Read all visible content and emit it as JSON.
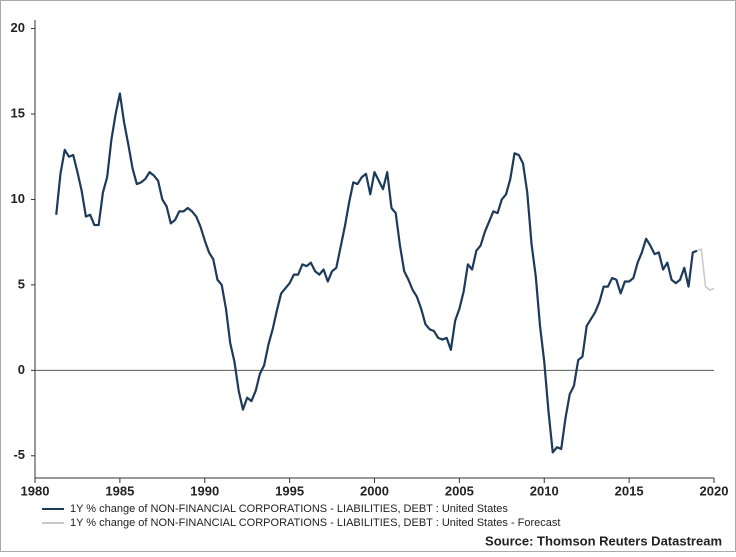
{
  "chart_data": {
    "type": "line",
    "source": "Source: Thomson Reuters Datastream",
    "xlim": [
      1980,
      2020
    ],
    "xticks": [
      1980,
      1985,
      1990,
      1995,
      2000,
      2005,
      2010,
      2015,
      2020
    ],
    "ylim": [
      -6.3,
      20.5
    ],
    "yticks": [
      -5,
      0,
      5,
      10,
      15,
      20
    ],
    "zero_line": true,
    "grid": false,
    "legend": "bottom",
    "series": [
      {
        "name": "1Y % change of NON-FINANCIAL CORPORATIONS - LIABILITIES, DEBT : United States",
        "color": "#1c3a5a",
        "x": [
          1981.25,
          1981.5,
          1981.75,
          1982,
          1982.25,
          1982.5,
          1982.75,
          1983,
          1983.25,
          1983.5,
          1983.75,
          1984,
          1984.25,
          1984.5,
          1984.75,
          1985,
          1985.25,
          1985.5,
          1985.75,
          1986,
          1986.25,
          1986.5,
          1986.75,
          1987,
          1987.25,
          1987.5,
          1987.75,
          1988,
          1988.25,
          1988.5,
          1988.75,
          1989,
          1989.25,
          1989.5,
          1989.75,
          1990,
          1990.25,
          1990.5,
          1990.75,
          1991,
          1991.25,
          1991.5,
          1991.75,
          1992,
          1992.25,
          1992.5,
          1992.75,
          1993,
          1993.25,
          1993.5,
          1993.75,
          1994,
          1994.25,
          1994.5,
          1994.75,
          1995,
          1995.25,
          1995.5,
          1995.75,
          1996,
          1996.25,
          1996.5,
          1996.75,
          1997,
          1997.25,
          1997.5,
          1997.75,
          1998,
          1998.25,
          1998.5,
          1998.75,
          1999,
          1999.25,
          1999.5,
          1999.75,
          2000,
          2000.25,
          2000.5,
          2000.75,
          2001,
          2001.25,
          2001.5,
          2001.75,
          2002,
          2002.25,
          2002.5,
          2002.75,
          2003,
          2003.25,
          2003.5,
          2003.75,
          2004,
          2004.25,
          2004.5,
          2004.75,
          2005,
          2005.25,
          2005.5,
          2005.75,
          2006,
          2006.25,
          2006.5,
          2006.75,
          2007,
          2007.25,
          2007.5,
          2007.75,
          2008,
          2008.25,
          2008.5,
          2008.75,
          2009,
          2009.25,
          2009.5,
          2009.75,
          2010,
          2010.25,
          2010.5,
          2010.75,
          2011,
          2011.25,
          2011.5,
          2011.75,
          2012,
          2012.25,
          2012.5,
          2012.75,
          2013,
          2013.25,
          2013.5,
          2013.75,
          2014,
          2014.25,
          2014.5,
          2014.75,
          2015,
          2015.25,
          2015.5,
          2015.75,
          2016,
          2016.25,
          2016.5,
          2016.75,
          2017,
          2017.25,
          2017.5,
          2017.75,
          2018,
          2018.25,
          2018.5,
          2018.75,
          2019
        ],
        "values": [
          9.1,
          11.5,
          12.9,
          12.5,
          12.6,
          11.6,
          10.5,
          9.0,
          9.1,
          8.5,
          8.5,
          10.4,
          11.3,
          13.5,
          15.0,
          16.2,
          14.5,
          13.2,
          11.8,
          10.9,
          11.0,
          11.2,
          11.6,
          11.4,
          11.1,
          10.0,
          9.6,
          8.6,
          8.8,
          9.3,
          9.3,
          9.5,
          9.3,
          9.0,
          8.4,
          7.6,
          6.9,
          6.5,
          5.3,
          5.0,
          3.6,
          1.6,
          0.5,
          -1.2,
          -2.3,
          -1.6,
          -1.8,
          -1.2,
          -0.2,
          0.3,
          1.5,
          2.4,
          3.5,
          4.5,
          4.8,
          5.1,
          5.6,
          5.6,
          6.2,
          6.1,
          6.3,
          5.8,
          5.6,
          5.9,
          5.2,
          5.8,
          6.0,
          7.2,
          8.4,
          9.8,
          11.0,
          10.9,
          11.3,
          11.5,
          10.3,
          11.6,
          11.1,
          10.6,
          11.6,
          9.5,
          9.2,
          7.3,
          5.8,
          5.3,
          4.7,
          4.3,
          3.6,
          2.7,
          2.4,
          2.3,
          1.9,
          1.8,
          1.9,
          1.2,
          2.9,
          3.6,
          4.6,
          6.2,
          5.9,
          7.0,
          7.3,
          8.1,
          8.7,
          9.3,
          9.2,
          10.0,
          10.3,
          11.2,
          12.7,
          12.6,
          12.1,
          10.4,
          7.4,
          5.5,
          2.6,
          0.5,
          -2.4,
          -4.8,
          -4.5,
          -4.6,
          -2.8,
          -1.4,
          -0.9,
          0.6,
          0.8,
          2.6,
          3.0,
          3.4,
          4.0,
          4.9,
          4.9,
          5.4,
          5.3,
          4.5,
          5.2,
          5.2,
          5.4,
          6.3,
          6.9,
          7.7,
          7.3,
          6.8,
          6.9,
          5.9,
          6.3,
          5.3,
          5.1,
          5.3,
          6.0,
          4.9,
          6.9,
          7.0
        ]
      },
      {
        "name": "1Y % change of NON-FINANCIAL CORPORATIONS - LIABILITIES, DEBT : United States - Forecast",
        "color": "#c8c8c8",
        "x": [
          2019,
          2019.25,
          2019.5,
          2019.75,
          2020
        ],
        "values": [
          7.0,
          7.1,
          4.9,
          4.7,
          4.8
        ]
      }
    ]
  }
}
